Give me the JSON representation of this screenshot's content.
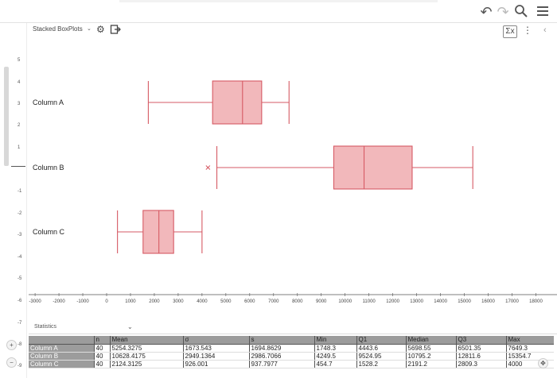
{
  "toolbar": {
    "undo_icon": "undo-icon",
    "redo_icon": "redo-icon",
    "search_icon": "search-icon",
    "menu_icon": "hamburger-menu-icon"
  },
  "view_header": {
    "title": "Stacked BoxPlots",
    "sigma_label": "Σx"
  },
  "y_axis_ticks": [
    "5",
    "4",
    "3",
    "2",
    "1",
    "-1",
    "-2",
    "-3",
    "-4",
    "-5",
    "-6",
    "-7",
    "-8",
    "-9"
  ],
  "chart_data": {
    "type": "boxplot",
    "orientation": "horizontal",
    "xlim": [
      -3000,
      18000
    ],
    "x_ticks": [
      -3000,
      -2000,
      -1000,
      0,
      1000,
      2000,
      3000,
      4000,
      5000,
      6000,
      7000,
      8000,
      9000,
      10000,
      11000,
      12000,
      13000,
      14000,
      15000,
      16000,
      17000,
      18000
    ],
    "box_fill": "#f2b8bb",
    "box_stroke": "#d65a64",
    "series": [
      {
        "name": "Column A",
        "whisker_low": 1748.3,
        "q1": 4443.6,
        "median": 5698.55,
        "q3": 6501.35,
        "whisker_high": 7649.3,
        "outliers": []
      },
      {
        "name": "Column B",
        "whisker_low": 4622,
        "q1": 9524.95,
        "median": 10795.2,
        "q3": 12811.6,
        "whisker_high": 15354.7,
        "outliers": [
          4249.5
        ]
      },
      {
        "name": "Column C",
        "whisker_low": 454.7,
        "q1": 1528.2,
        "median": 2191.2,
        "q3": 2809.3,
        "whisker_high": 4000,
        "outliers": []
      }
    ]
  },
  "statistics": {
    "title": "Statistics",
    "columns": [
      "",
      "n",
      "Mean",
      "σ",
      "s",
      "Min",
      "Q1",
      "Median",
      "Q3",
      "Max"
    ],
    "rows": [
      [
        "Column A",
        "40",
        "5254.3275",
        "1673.543",
        "1694.8629",
        "1748.3",
        "4443.6",
        "5698.55",
        "6501.35",
        "7649.3"
      ],
      [
        "Column B",
        "40",
        "10628.4175",
        "2949.1364",
        "2986.7066",
        "4249.5",
        "9524.95",
        "10795.2",
        "12811.6",
        "15354.7"
      ],
      [
        "Column C",
        "40",
        "2124.3125",
        "926.001",
        "937.7977",
        "454.7",
        "1528.2",
        "2191.2",
        "2809.3",
        "4000"
      ]
    ]
  }
}
